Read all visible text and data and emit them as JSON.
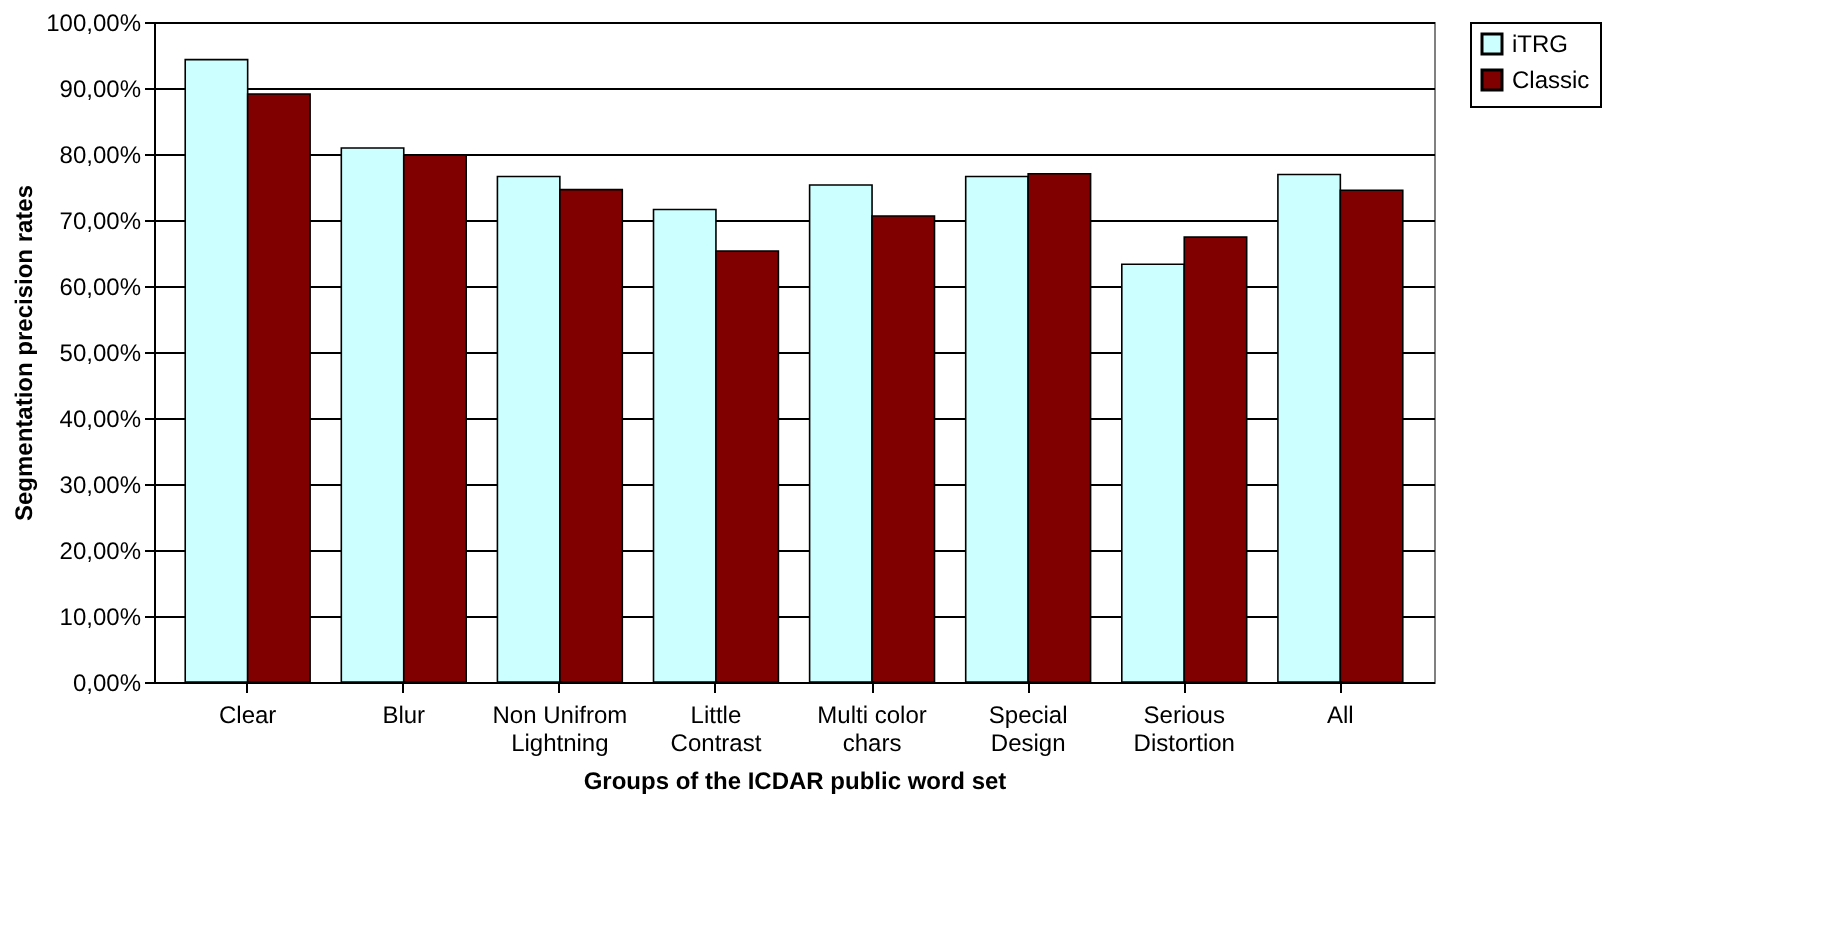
{
  "chart_data": {
    "type": "bar",
    "xlabel": "Groups of the ICDAR public word set",
    "ylabel": "Segmentation precision rates",
    "categories": [
      "Clear",
      "Blur",
      "Non Unifrom Lightning",
      "Little Contrast",
      "Multi color chars",
      "Special Design",
      "Serious Distortion",
      "All"
    ],
    "series": [
      {
        "name": "iTRG",
        "color": "#ccffff",
        "values": [
          94.3,
          80.9,
          76.6,
          71.6,
          75.3,
          76.6,
          63.3,
          76.9
        ]
      },
      {
        "name": "Classic",
        "color": "#800000",
        "values": [
          89.1,
          79.8,
          74.6,
          65.3,
          70.6,
          77.0,
          67.4,
          74.5
        ]
      }
    ],
    "ylim": [
      0,
      100
    ],
    "yticks": [
      {
        "value": 0,
        "label": "0,00%"
      },
      {
        "value": 10,
        "label": "10,00%"
      },
      {
        "value": 20,
        "label": "20,00%"
      },
      {
        "value": 30,
        "label": "30,00%"
      },
      {
        "value": 40,
        "label": "40,00%"
      },
      {
        "value": 50,
        "label": "50,00%"
      },
      {
        "value": 60,
        "label": "60,00%"
      },
      {
        "value": 70,
        "label": "70,00%"
      },
      {
        "value": 80,
        "label": "80,00%"
      },
      {
        "value": 90,
        "label": "90,00%"
      },
      {
        "value": 100,
        "label": "100,00%"
      }
    ],
    "grid": "y",
    "legend": "right"
  }
}
